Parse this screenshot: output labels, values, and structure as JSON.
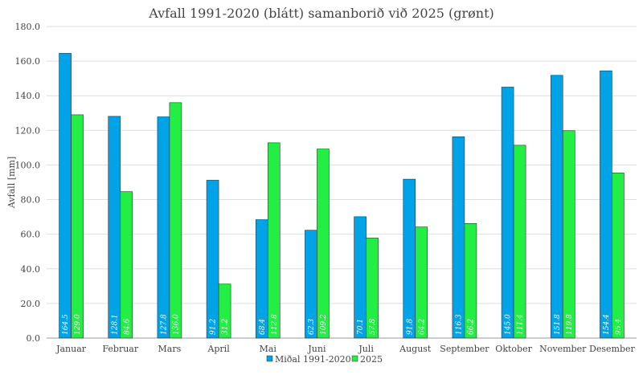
{
  "chart_data": {
    "type": "bar",
    "title": "Avfall 1991-2020 (blátt) samanborið við 2025 (grønt)",
    "xlabel": "",
    "ylabel": "Avfall [mm]",
    "ylim": [
      0,
      180
    ],
    "yticks": [
      "0.0",
      "20.0",
      "40.0",
      "60.0",
      "80.0",
      "100.0",
      "120.0",
      "140.0",
      "160.0",
      "180.0"
    ],
    "grid": true,
    "legend_position": "bottom",
    "categories": [
      "Januar",
      "Februar",
      "Mars",
      "April",
      "Mai",
      "Juni",
      "Juli",
      "August",
      "September",
      "Oktober",
      "November",
      "Desember"
    ],
    "series": [
      {
        "name": "Miðal 1991-2020",
        "color": "#00a2e8",
        "values": [
          164.5,
          128.1,
          127.8,
          91.2,
          68.4,
          62.3,
          70.1,
          91.8,
          116.3,
          145.0,
          151.8,
          154.4
        ],
        "labels": [
          "164.5",
          "128.1",
          "127.8",
          "91.2",
          "68.4",
          "62.3",
          "70.1",
          "91.8",
          "116.3",
          "145.0",
          "151.8",
          "154.4"
        ]
      },
      {
        "name": "2025",
        "color": "#22ee44",
        "values": [
          129.0,
          84.6,
          136.0,
          31.2,
          112.8,
          109.2,
          57.8,
          64.2,
          66.2,
          111.4,
          119.8,
          95.4
        ],
        "labels": [
          "129.0",
          "84.6",
          "136.0",
          "31.2",
          "112.8",
          "109.2",
          "57.8",
          "64.2",
          "66.2",
          "111.4",
          "119.8",
          "95.4"
        ]
      }
    ]
  }
}
